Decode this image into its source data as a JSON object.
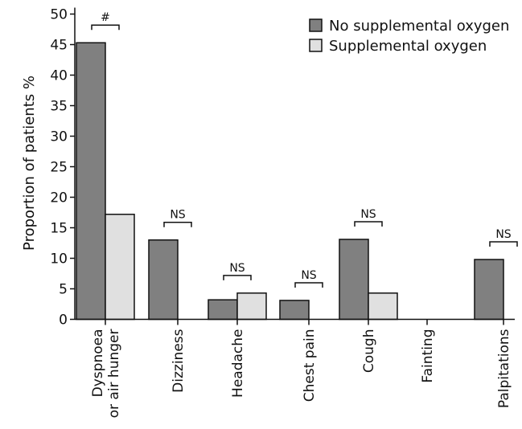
{
  "chart_data": {
    "type": "bar",
    "title": "",
    "xlabel": "",
    "ylabel": "Proportion of patients %",
    "ylim": [
      0,
      50
    ],
    "yticks": [
      0,
      5,
      10,
      15,
      20,
      25,
      30,
      35,
      40,
      45,
      50
    ],
    "grid": false,
    "legend_position": "top-right",
    "categories": [
      [
        "Dyspnoea",
        "or air hunger"
      ],
      [
        "Dizziness"
      ],
      [
        "Headache"
      ],
      [
        "Chest pain"
      ],
      [
        "Cough"
      ],
      [
        "Fainting"
      ],
      [
        "Palpitations"
      ]
    ],
    "series": [
      {
        "name": "No supplemental oxygen",
        "color": "#808080",
        "values": [
          45.3,
          13.0,
          3.2,
          3.1,
          13.1,
          0,
          9.8
        ]
      },
      {
        "name": "Supplemental oxygen",
        "color": "#e0e0e0",
        "values": [
          17.2,
          0,
          4.3,
          0,
          4.3,
          0,
          0
        ]
      }
    ],
    "significance": [
      {
        "category": 0,
        "label": "#"
      },
      {
        "category": 1,
        "label": "NS"
      },
      {
        "category": 2,
        "label": "NS"
      },
      {
        "category": 3,
        "label": "NS"
      },
      {
        "category": 4,
        "label": "NS"
      },
      {
        "category": 6,
        "label": "NS"
      }
    ]
  }
}
